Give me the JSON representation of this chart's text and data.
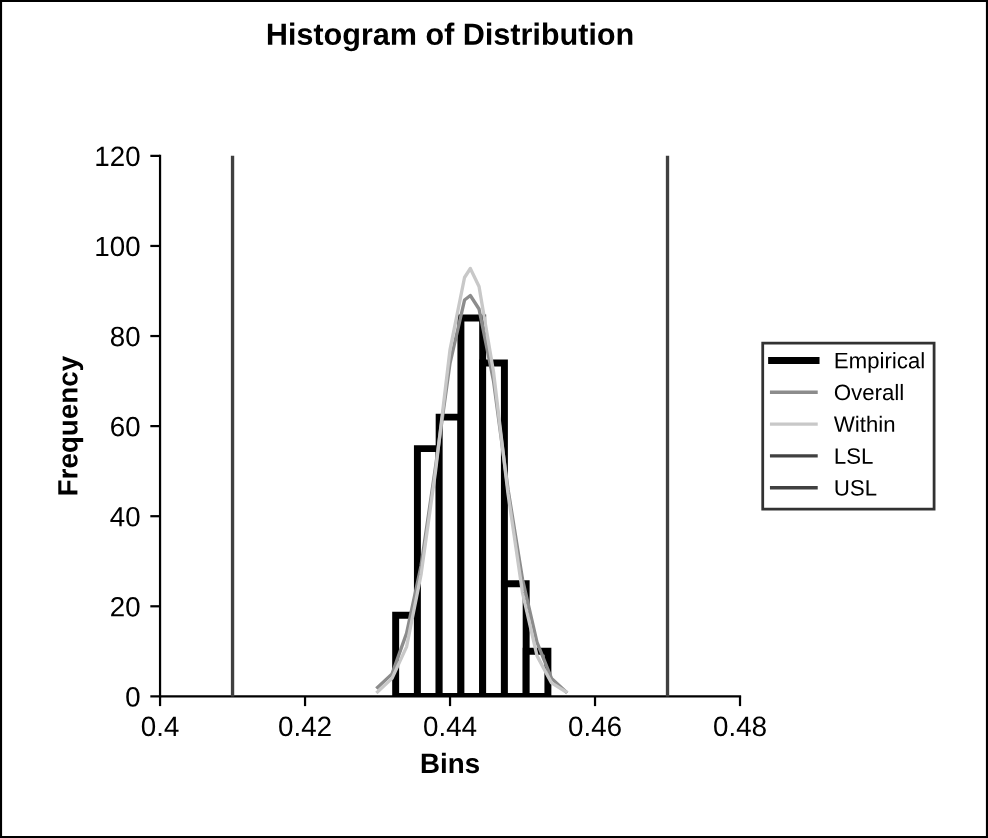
{
  "chart_data": {
    "type": "histogram",
    "title": "Histogram of Distribution",
    "xlabel": "Bins",
    "ylabel": "Frequency",
    "series": [
      {
        "name": "Empirical",
        "color": "#000000",
        "bins": [
          0.4325,
          0.4355,
          0.4385,
          0.4415,
          0.4445,
          0.4475,
          0.4505,
          0.4535
        ],
        "values": [
          18,
          55,
          62,
          84,
          74,
          25,
          10
        ]
      },
      {
        "name": "Overall",
        "type": "line",
        "color": "#8c8c8c",
        "x": [
          0.43,
          0.432,
          0.434,
          0.436,
          0.438,
          0.44,
          0.442,
          0.4428,
          0.444,
          0.446,
          0.448,
          0.45,
          0.452,
          0.454,
          0.456
        ],
        "values": [
          2,
          5,
          14,
          29,
          51,
          74,
          88,
          89,
          86,
          70,
          46,
          26,
          12,
          4,
          1
        ]
      },
      {
        "name": "Within",
        "type": "line",
        "color": "#c8c8c8",
        "x": [
          0.43,
          0.432,
          0.434,
          0.436,
          0.438,
          0.44,
          0.442,
          0.4428,
          0.444,
          0.446,
          0.448,
          0.45,
          0.452,
          0.454,
          0.456
        ],
        "values": [
          1,
          4,
          11,
          27,
          50,
          77,
          93,
          95,
          91,
          72,
          45,
          23,
          9,
          3,
          1
        ]
      },
      {
        "name": "LSL",
        "type": "line",
        "color": "#404040",
        "x": [
          0.41,
          0.41
        ],
        "values": [
          0,
          120
        ]
      },
      {
        "name": "USL",
        "type": "line",
        "color": "#404040",
        "x": [
          0.47,
          0.47
        ],
        "values": [
          0,
          120
        ]
      }
    ],
    "xlim": [
      0.4,
      0.48
    ],
    "xticks": [
      0.4,
      0.42,
      0.44,
      0.46,
      0.48
    ],
    "ylim": [
      0,
      120
    ],
    "yticks": [
      0,
      20,
      40,
      60,
      80,
      100,
      120
    ],
    "grid": false,
    "legend": "right"
  }
}
